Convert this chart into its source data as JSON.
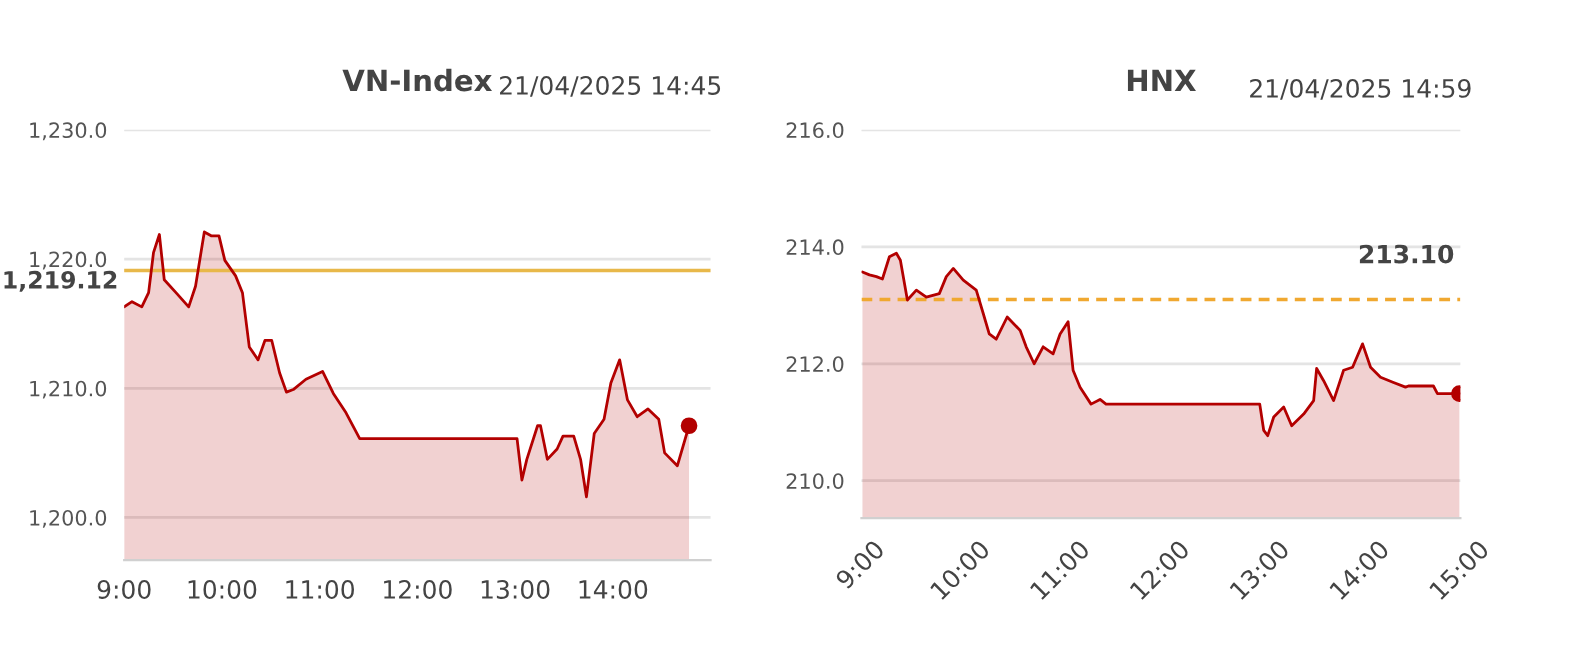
{
  "chart_data": [
    {
      "type": "area",
      "title": "VN-Index",
      "subtitle": "21/04/2025 14:45",
      "x": [
        9.0,
        9.08,
        9.18,
        9.25,
        9.3,
        9.36,
        9.41,
        9.53,
        9.66,
        9.73,
        9.82,
        9.89,
        9.97,
        10.03,
        10.14,
        10.21,
        10.28,
        10.37,
        10.44,
        10.51,
        10.59,
        10.66,
        10.73,
        10.86,
        11.03,
        11.14,
        11.27,
        11.41,
        11.48,
        13.02,
        13.07,
        13.12,
        13.23,
        13.26,
        13.33,
        13.43,
        13.49,
        13.6,
        13.67,
        13.73,
        13.81,
        13.91,
        13.98,
        14.07,
        14.15,
        14.25,
        14.36,
        14.47,
        14.53,
        14.66,
        14.78
      ],
      "series": [
        {
          "color": "#b30000",
          "values": [
            1216.3,
            1216.7,
            1216.3,
            1217.4,
            1220.5,
            1221.9,
            1218.4,
            1217.4,
            1216.3,
            1217.9,
            1222.1,
            1221.8,
            1221.8,
            1219.9,
            1218.7,
            1217.4,
            1213.2,
            1212.2,
            1213.7,
            1213.7,
            1211.2,
            1209.7,
            1209.9,
            1210.7,
            1211.3,
            1209.6,
            1208.1,
            1206.1,
            1206.1,
            1206.1,
            1202.9,
            1204.5,
            1207.1,
            1207.1,
            1204.5,
            1205.3,
            1206.3,
            1206.3,
            1204.5,
            1201.6,
            1206.5,
            1207.6,
            1210.4,
            1212.2,
            1209.1,
            1207.8,
            1208.4,
            1207.6,
            1205.0,
            1204.0,
            1207.1
          ]
        }
      ],
      "xlim": [
        9,
        15
      ],
      "xticks": [
        {
          "value": 9,
          "label": "9:00"
        },
        {
          "value": 10,
          "label": "10:00"
        },
        {
          "value": 11,
          "label": "11:00"
        },
        {
          "value": 12,
          "label": "12:00"
        },
        {
          "value": 13,
          "label": "13:00"
        },
        {
          "value": 14,
          "label": "14:00"
        }
      ],
      "ylim": [
        1196.7,
        1230
      ],
      "yticks": [
        {
          "value": 1200,
          "label": "1,200.0"
        },
        {
          "value": 1210,
          "label": "1,210.0"
        },
        {
          "value": 1220,
          "label": "1,220.0"
        },
        {
          "value": 1230,
          "label": "1,230.0"
        }
      ],
      "ref_lines": [
        {
          "axis": "y",
          "value": 1219.12,
          "label": "1,219.12",
          "color": "#e8b84a",
          "line_style": "solid"
        }
      ],
      "grid": "y"
    },
    {
      "type": "area",
      "title": "HNX",
      "subtitle": "21/04/2025 14:59",
      "x": [
        9.01,
        9.08,
        9.15,
        9.21,
        9.28,
        9.35,
        9.39,
        9.46,
        9.55,
        9.65,
        9.78,
        9.85,
        9.92,
        10.02,
        10.15,
        10.22,
        10.28,
        10.35,
        10.46,
        10.59,
        10.65,
        10.73,
        10.82,
        10.92,
        10.99,
        11.07,
        11.12,
        11.19,
        11.3,
        11.39,
        11.45,
        12.99,
        13.03,
        13.07,
        13.13,
        13.23,
        13.31,
        13.43,
        13.53,
        13.56,
        13.63,
        13.73,
        13.83,
        13.92,
        14.02,
        14.1,
        14.2,
        14.33,
        14.45,
        14.48,
        14.73,
        14.77,
        14.99
      ],
      "series": [
        {
          "color": "#b30000",
          "values": [
            213.57,
            213.52,
            213.49,
            213.45,
            213.83,
            213.89,
            213.77,
            213.09,
            213.26,
            213.14,
            213.2,
            213.49,
            213.63,
            213.43,
            213.26,
            212.86,
            212.51,
            212.42,
            212.8,
            212.57,
            212.29,
            212.0,
            212.29,
            212.17,
            212.51,
            212.72,
            211.89,
            211.6,
            211.31,
            211.39,
            211.31,
            211.31,
            210.86,
            210.77,
            211.09,
            211.26,
            210.94,
            211.14,
            211.37,
            211.92,
            211.71,
            211.37,
            211.89,
            211.94,
            212.34,
            211.94,
            211.77,
            211.68,
            211.6,
            211.62,
            211.62,
            211.49,
            211.49
          ]
        }
      ],
      "xlim": [
        9,
        15
      ],
      "xticks": [
        {
          "value": 9,
          "label": "9:00"
        },
        {
          "value": 10,
          "label": "10:00"
        },
        {
          "value": 11,
          "label": "11:00"
        },
        {
          "value": 12,
          "label": "12:00"
        },
        {
          "value": 13,
          "label": "13:00"
        },
        {
          "value": 14,
          "label": "14:00"
        },
        {
          "value": 15,
          "label": "15:00"
        }
      ],
      "ylim": [
        209.36,
        216
      ],
      "yticks": [
        {
          "value": 210,
          "label": "210.0"
        },
        {
          "value": 212,
          "label": "212.0"
        },
        {
          "value": 214,
          "label": "214.0"
        },
        {
          "value": 216,
          "label": "216.0"
        }
      ],
      "ref_lines": [
        {
          "axis": "y",
          "value": 213.1,
          "label": "213.10",
          "color": "#f0a830",
          "line_style": "dashed"
        }
      ],
      "grid": "y"
    }
  ]
}
